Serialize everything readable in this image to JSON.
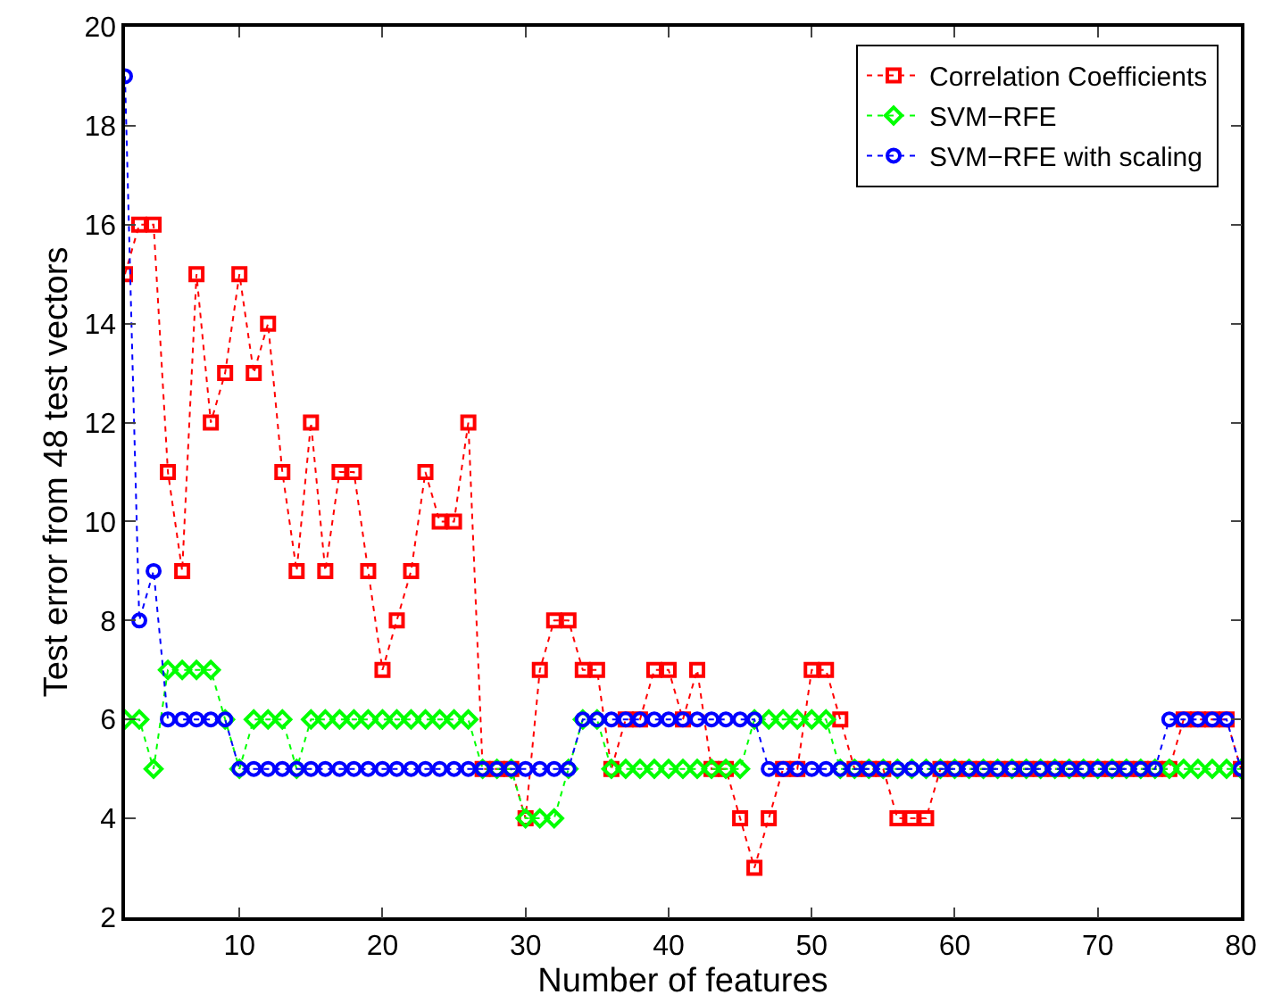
{
  "chart_data": {
    "type": "line",
    "xlabel": "Number of features",
    "ylabel": "Test error from 48 test vectors",
    "x": [
      2,
      3,
      4,
      5,
      6,
      7,
      8,
      9,
      10,
      11,
      12,
      13,
      14,
      15,
      16,
      17,
      18,
      19,
      20,
      21,
      22,
      23,
      24,
      25,
      26,
      27,
      28,
      29,
      30,
      31,
      32,
      33,
      34,
      35,
      36,
      37,
      38,
      39,
      40,
      41,
      42,
      43,
      44,
      45,
      46,
      47,
      48,
      49,
      50,
      51,
      52,
      53,
      54,
      55,
      56,
      57,
      58,
      59,
      60,
      61,
      62,
      63,
      64,
      65,
      66,
      67,
      68,
      69,
      70,
      71,
      72,
      73,
      74,
      75,
      76,
      77,
      78,
      79,
      80
    ],
    "series": [
      {
        "name": "Correlation Coefficients",
        "color": "#ff0000",
        "marker": "square",
        "values": [
          15,
          16,
          16,
          11,
          9,
          15,
          12,
          13,
          15,
          13,
          14,
          11,
          9,
          12,
          9,
          11,
          11,
          9,
          7,
          8,
          9,
          11,
          10,
          10,
          12,
          5,
          5,
          5,
          4,
          7,
          8,
          8,
          7,
          7,
          5,
          6,
          6,
          7,
          7,
          6,
          7,
          5,
          5,
          4,
          3,
          4,
          5,
          5,
          7,
          7,
          6,
          5,
          5,
          5,
          4,
          4,
          4,
          5,
          5,
          5,
          5,
          5,
          5,
          5,
          5,
          5,
          5,
          5,
          5,
          5,
          5,
          5,
          5,
          5,
          6,
          6,
          6,
          6,
          5
        ]
      },
      {
        "name": "SVM−RFE",
        "color": "#00ff00",
        "marker": "diamond",
        "values": [
          6,
          6,
          5,
          7,
          7,
          7,
          7,
          6,
          5,
          6,
          6,
          6,
          5,
          6,
          6,
          6,
          6,
          6,
          6,
          6,
          6,
          6,
          6,
          6,
          6,
          5,
          5,
          5,
          4,
          4,
          4,
          5,
          6,
          6,
          5,
          5,
          5,
          5,
          5,
          5,
          5,
          5,
          5,
          5,
          6,
          6,
          6,
          6,
          6,
          6,
          5,
          5,
          5,
          5,
          5,
          5,
          5,
          5,
          5,
          5,
          5,
          5,
          5,
          5,
          5,
          5,
          5,
          5,
          5,
          5,
          5,
          5,
          5,
          5,
          5,
          5,
          5,
          5,
          5
        ]
      },
      {
        "name": "SVM−RFE with scaling",
        "color": "#0000ff",
        "marker": "circle",
        "values": [
          19,
          8,
          9,
          6,
          6,
          6,
          6,
          6,
          5,
          5,
          5,
          5,
          5,
          5,
          5,
          5,
          5,
          5,
          5,
          5,
          5,
          5,
          5,
          5,
          5,
          5,
          5,
          5,
          5,
          5,
          5,
          5,
          6,
          6,
          6,
          6,
          6,
          6,
          6,
          6,
          6,
          6,
          6,
          6,
          6,
          5,
          5,
          5,
          5,
          5,
          5,
          5,
          5,
          5,
          5,
          5,
          5,
          5,
          5,
          5,
          5,
          5,
          5,
          5,
          5,
          5,
          5,
          5,
          5,
          5,
          5,
          5,
          5,
          6,
          6,
          6,
          6,
          6,
          5
        ]
      }
    ],
    "xlim": [
      2,
      80
    ],
    "xticks": [
      10,
      20,
      30,
      40,
      50,
      60,
      70,
      80
    ],
    "ylim": [
      2,
      20
    ],
    "yticks": [
      2,
      4,
      6,
      8,
      10,
      12,
      14,
      16,
      18,
      20
    ],
    "grid": false,
    "legend": "top right",
    "line_style": "dotted"
  }
}
